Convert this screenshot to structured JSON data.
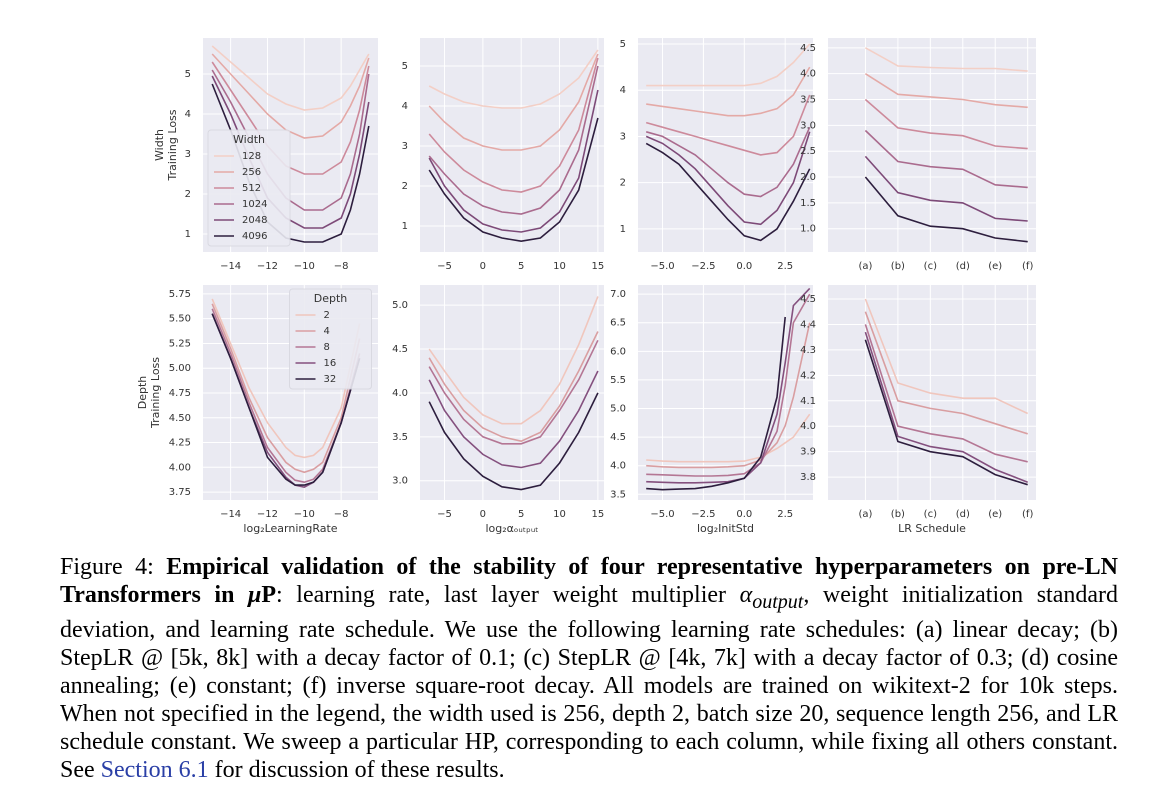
{
  "chart_data": [
    {
      "type": "line",
      "ylabel": [
        "Width",
        "Training Loss"
      ],
      "legend": "lower left",
      "legend_title": "Width",
      "x": [
        -15,
        -14,
        -13,
        -12,
        -11,
        -10,
        -9,
        -8,
        -7.5,
        -7,
        -6.5
      ],
      "xlim": [
        -15.5,
        -6
      ],
      "xticks": [
        {
          "value": -14,
          "label": "−14"
        },
        {
          "value": -12,
          "label": "−12"
        },
        {
          "value": -10,
          "label": "−10"
        },
        {
          "value": -8,
          "label": "−8"
        }
      ],
      "ylim": [
        0.55,
        5.9
      ],
      "yticks": [
        1,
        2,
        3,
        4,
        5
      ],
      "grid": true,
      "series": [
        {
          "name": "128",
          "color": "#f3cfc6",
          "values": [
            5.7,
            5.3,
            4.9,
            4.5,
            4.25,
            4.1,
            4.15,
            4.4,
            4.7,
            5.1,
            5.5
          ]
        },
        {
          "name": "256",
          "color": "#e4a9a6",
          "values": [
            5.5,
            5.0,
            4.5,
            4.0,
            3.6,
            3.4,
            3.45,
            3.8,
            4.2,
            4.7,
            5.4
          ]
        },
        {
          "name": "512",
          "color": "#cd8a9b",
          "values": [
            5.3,
            4.6,
            3.9,
            3.2,
            2.7,
            2.5,
            2.5,
            2.8,
            3.3,
            4.1,
            5.2
          ]
        },
        {
          "name": "1024",
          "color": "#aa6b8e",
          "values": [
            5.1,
            4.3,
            3.4,
            2.5,
            1.9,
            1.6,
            1.6,
            1.9,
            2.5,
            3.5,
            5.0
          ]
        },
        {
          "name": "2048",
          "color": "#7d4a78",
          "values": [
            4.95,
            4.0,
            2.9,
            1.9,
            1.4,
            1.15,
            1.15,
            1.4,
            2.0,
            3.0,
            4.3
          ]
        },
        {
          "name": "4096",
          "color": "#2d1e3e",
          "values": [
            4.75,
            3.6,
            2.3,
            1.3,
            0.9,
            0.8,
            0.8,
            1.0,
            1.6,
            2.5,
            3.7
          ]
        }
      ]
    },
    {
      "type": "line",
      "x": [
        -7,
        -5,
        -2.5,
        0,
        2.5,
        5,
        7.5,
        10,
        12.5,
        15
      ],
      "xlim": [
        -8.2,
        15.8
      ],
      "xticks": [
        {
          "value": -5,
          "label": "−5"
        },
        0,
        5,
        10,
        15
      ],
      "ylim": [
        0.35,
        5.7
      ],
      "yticks": [
        1,
        2,
        3,
        4,
        5
      ],
      "grid": true,
      "series": [
        {
          "name": "128",
          "color": "#f3cfc6",
          "values": [
            4.5,
            4.3,
            4.1,
            4.0,
            3.95,
            3.95,
            4.05,
            4.3,
            4.7,
            5.4
          ]
        },
        {
          "name": "256",
          "color": "#e4a9a6",
          "values": [
            4.0,
            3.6,
            3.2,
            3.0,
            2.9,
            2.9,
            3.0,
            3.4,
            4.1,
            5.3
          ]
        },
        {
          "name": "512",
          "color": "#cd8a9b",
          "values": [
            3.3,
            2.85,
            2.4,
            2.1,
            1.9,
            1.85,
            2.0,
            2.5,
            3.4,
            5.2
          ]
        },
        {
          "name": "1024",
          "color": "#aa6b8e",
          "values": [
            2.75,
            2.3,
            1.8,
            1.5,
            1.35,
            1.3,
            1.45,
            1.9,
            2.9,
            5.0
          ]
        },
        {
          "name": "2048",
          "color": "#7d4a78",
          "values": [
            2.7,
            2.0,
            1.4,
            1.05,
            0.9,
            0.85,
            0.95,
            1.35,
            2.2,
            4.4
          ]
        },
        {
          "name": "4096",
          "color": "#2d1e3e",
          "values": [
            2.4,
            1.8,
            1.2,
            0.85,
            0.7,
            0.62,
            0.7,
            1.1,
            1.9,
            3.7
          ]
        }
      ]
    },
    {
      "type": "line",
      "x": [
        -6,
        -5,
        -4,
        -3,
        -2,
        -1,
        0,
        1,
        2,
        3,
        4
      ],
      "xlim": [
        -6.5,
        4.2
      ],
      "xticks": [
        {
          "value": -5,
          "label": "−5.0"
        },
        {
          "value": -2.5,
          "label": "−2.5"
        },
        {
          "value": 0,
          "label": "0.0"
        },
        2.5
      ],
      "ylim": [
        0.5,
        5.13
      ],
      "yticks": [
        1,
        2,
        3,
        4,
        5
      ],
      "grid": true,
      "series": [
        {
          "name": "128",
          "color": "#f3cfc6",
          "values": [
            4.1,
            4.1,
            4.1,
            4.1,
            4.1,
            4.1,
            4.1,
            4.15,
            4.3,
            4.6,
            5.0
          ]
        },
        {
          "name": "256",
          "color": "#e4a9a6",
          "values": [
            3.7,
            3.65,
            3.6,
            3.55,
            3.5,
            3.45,
            3.45,
            3.5,
            3.6,
            3.9,
            4.5
          ]
        },
        {
          "name": "512",
          "color": "#cd8a9b",
          "values": [
            3.3,
            3.2,
            3.1,
            3.0,
            2.9,
            2.8,
            2.7,
            2.6,
            2.65,
            3.0,
            3.9
          ]
        },
        {
          "name": "1024",
          "color": "#aa6b8e",
          "values": [
            3.1,
            3.0,
            2.8,
            2.6,
            2.3,
            2.0,
            1.75,
            1.7,
            1.9,
            2.4,
            3.2
          ]
        },
        {
          "name": "2048",
          "color": "#7d4a78",
          "values": [
            3.0,
            2.85,
            2.6,
            2.3,
            1.9,
            1.5,
            1.15,
            1.1,
            1.4,
            2.0,
            3.1
          ]
        },
        {
          "name": "4096",
          "color": "#2d1e3e",
          "values": [
            2.85,
            2.65,
            2.4,
            2.0,
            1.6,
            1.2,
            0.85,
            0.75,
            1.0,
            1.6,
            2.3
          ]
        }
      ]
    },
    {
      "type": "line",
      "categories": [
        "(a)",
        "(b)",
        "(c)",
        "(d)",
        "(e)",
        "(f)"
      ],
      "ylim": [
        0.55,
        4.69
      ],
      "yticks": [
        4.5,
        {
          "value": 4,
          "label": "4.0"
        },
        3.5,
        {
          "value": 3,
          "label": "3.0"
        },
        2.5,
        {
          "value": 2,
          "label": "2.0"
        },
        1.5,
        {
          "value": 1,
          "label": "1.0"
        }
      ],
      "grid": true,
      "series": [
        {
          "name": "128",
          "color": "#f3cfc6",
          "values": [
            4.5,
            4.15,
            4.12,
            4.1,
            4.1,
            4.05
          ]
        },
        {
          "name": "256",
          "color": "#e4a9a6",
          "values": [
            4.0,
            3.6,
            3.55,
            3.5,
            3.4,
            3.35
          ]
        },
        {
          "name": "512",
          "color": "#cd8a9b",
          "values": [
            3.5,
            2.95,
            2.85,
            2.8,
            2.6,
            2.55
          ]
        },
        {
          "name": "1024",
          "color": "#aa6b8e",
          "values": [
            2.9,
            2.3,
            2.2,
            2.15,
            1.85,
            1.8
          ]
        },
        {
          "name": "2048",
          "color": "#7d4a78",
          "values": [
            2.4,
            1.7,
            1.55,
            1.5,
            1.2,
            1.15
          ]
        },
        {
          "name": "4096",
          "color": "#2d1e3e",
          "values": [
            2.0,
            1.25,
            1.05,
            1.0,
            0.82,
            0.75
          ]
        }
      ]
    },
    {
      "type": "line",
      "ylabel": [
        "Depth",
        "Training Loss"
      ],
      "xlabel": "log₂LearningRate",
      "legend": "upper center",
      "legend_title": "Depth",
      "x": [
        -15,
        -14,
        -13,
        -12,
        -11,
        -10.5,
        -10,
        -9.5,
        -9,
        -8,
        -7
      ],
      "xlim": [
        -15.5,
        -6
      ],
      "xticks": [
        {
          "value": -14,
          "label": "−14"
        },
        {
          "value": -12,
          "label": "−12"
        },
        {
          "value": -10,
          "label": "−10"
        },
        {
          "value": -8,
          "label": "−8"
        }
      ],
      "ylim": [
        3.67,
        5.84
      ],
      "yticks": [
        5.75,
        {
          "value": 5.5,
          "label": "5.50"
        },
        5.25,
        {
          "value": 5,
          "label": "5.00"
        },
        4.75,
        {
          "value": 4.5,
          "label": "4.50"
        },
        4.25,
        {
          "value": 4,
          "label": "4.00"
        },
        3.75
      ],
      "grid": true,
      "series": [
        {
          "name": "2",
          "color": "#f0c6bd",
          "values": [
            5.7,
            5.25,
            4.8,
            4.45,
            4.2,
            4.12,
            4.1,
            4.12,
            4.2,
            4.6,
            5.45
          ]
        },
        {
          "name": "4",
          "color": "#d99ea1",
          "values": [
            5.65,
            5.2,
            4.7,
            4.3,
            4.05,
            3.98,
            3.95,
            3.98,
            4.05,
            4.5,
            5.3
          ]
        },
        {
          "name": "8",
          "color": "#b47694",
          "values": [
            5.6,
            5.15,
            4.65,
            4.2,
            3.95,
            3.87,
            3.85,
            3.88,
            3.98,
            4.45,
            5.15
          ]
        },
        {
          "name": "16",
          "color": "#84507e",
          "values": [
            5.55,
            5.1,
            4.6,
            4.15,
            3.9,
            3.82,
            3.8,
            3.85,
            3.95,
            4.45,
            5.1
          ]
        },
        {
          "name": "32",
          "color": "#2d1e3e",
          "values": [
            5.55,
            5.1,
            4.6,
            4.1,
            3.88,
            3.82,
            3.82,
            3.85,
            3.95,
            4.45,
            5.1
          ]
        }
      ]
    },
    {
      "type": "line",
      "xlabel": "log₂αₒᵤₜₚᵤₜ",
      "x": [
        -7,
        -5,
        -2.5,
        0,
        2.5,
        5,
        7.5,
        10,
        12.5,
        15
      ],
      "xlim": [
        -8.2,
        15.8
      ],
      "xticks": [
        {
          "value": -5,
          "label": "−5"
        },
        0,
        5,
        10,
        15
      ],
      "ylim": [
        2.78,
        5.23
      ],
      "yticks": [
        {
          "value": 5,
          "label": "5.0"
        },
        4.5,
        {
          "value": 4,
          "label": "4.0"
        },
        3.5,
        {
          "value": 3,
          "label": "3.0"
        }
      ],
      "grid": true,
      "series": [
        {
          "name": "2",
          "color": "#f0c6bd",
          "values": [
            4.5,
            4.25,
            3.95,
            3.75,
            3.65,
            3.65,
            3.8,
            4.1,
            4.55,
            5.1
          ]
        },
        {
          "name": "4",
          "color": "#d99ea1",
          "values": [
            4.4,
            4.1,
            3.8,
            3.6,
            3.5,
            3.45,
            3.55,
            3.85,
            4.25,
            4.7
          ]
        },
        {
          "name": "8",
          "color": "#b47694",
          "values": [
            4.3,
            4.0,
            3.7,
            3.5,
            3.42,
            3.42,
            3.5,
            3.8,
            4.15,
            4.6
          ]
        },
        {
          "name": "16",
          "color": "#84507e",
          "values": [
            4.15,
            3.8,
            3.5,
            3.3,
            3.18,
            3.15,
            3.2,
            3.45,
            3.8,
            4.25
          ]
        },
        {
          "name": "32",
          "color": "#2d1e3e",
          "values": [
            3.9,
            3.55,
            3.25,
            3.05,
            2.93,
            2.9,
            2.95,
            3.2,
            3.55,
            4.0
          ]
        }
      ]
    },
    {
      "type": "line",
      "xlabel": "log₂InitStd",
      "x": [
        -6,
        -5,
        -4,
        -3,
        -2,
        -1,
        0,
        1,
        2,
        2.5,
        3,
        4
      ],
      "xlim": [
        -6.5,
        4.2
      ],
      "xticks": [
        {
          "value": -5,
          "label": "−5.0"
        },
        {
          "value": -2.5,
          "label": "−2.5"
        },
        {
          "value": 0,
          "label": "0.0"
        },
        2.5
      ],
      "ylim": [
        3.4,
        7.16
      ],
      "yticks": [
        {
          "value": 7,
          "label": "7.0"
        },
        6.5,
        {
          "value": 6,
          "label": "6.0"
        },
        5.5,
        {
          "value": 5,
          "label": "5.0"
        },
        4.5,
        {
          "value": 4,
          "label": "4.0"
        },
        3.5
      ],
      "grid": true,
      "series": [
        {
          "name": "2",
          "color": "#f0c6bd",
          "values": [
            4.1,
            4.08,
            4.07,
            4.07,
            4.07,
            4.07,
            4.08,
            4.15,
            4.3,
            4.4,
            4.5,
            4.9
          ]
        },
        {
          "name": "4",
          "color": "#d99ea1",
          "values": [
            4.0,
            3.98,
            3.97,
            3.97,
            3.97,
            3.98,
            4.0,
            4.1,
            4.4,
            4.7,
            5.2,
            6.5
          ]
        },
        {
          "name": "8",
          "color": "#b47694",
          "values": [
            3.85,
            3.84,
            3.83,
            3.82,
            3.82,
            3.83,
            3.86,
            4.05,
            4.6,
            5.4,
            6.5,
            7.0
          ]
        },
        {
          "name": "16",
          "color": "#84507e",
          "values": [
            3.72,
            3.71,
            3.7,
            3.7,
            3.71,
            3.72,
            3.78,
            4.05,
            4.9,
            5.8,
            6.8,
            7.1
          ]
        },
        {
          "name": "32",
          "color": "#2d1e3e",
          "values": [
            3.6,
            3.58,
            3.59,
            3.6,
            3.64,
            3.7,
            3.78,
            4.15,
            5.2,
            6.6,
            null,
            null
          ]
        }
      ]
    },
    {
      "type": "line",
      "xlabel": "LR Schedule",
      "categories": [
        "(a)",
        "(b)",
        "(c)",
        "(d)",
        "(e)",
        "(f)"
      ],
      "ylim": [
        3.71,
        4.555
      ],
      "yticks": [
        4.5,
        4.4,
        4.3,
        4.2,
        4.1,
        {
          "value": 4,
          "label": "4.0"
        },
        3.9,
        3.8
      ],
      "grid": true,
      "series": [
        {
          "name": "2",
          "color": "#f0c6bd",
          "values": [
            4.5,
            4.17,
            4.13,
            4.11,
            4.11,
            4.05
          ]
        },
        {
          "name": "4",
          "color": "#d99ea1",
          "values": [
            4.45,
            4.1,
            4.07,
            4.05,
            4.01,
            3.97
          ]
        },
        {
          "name": "8",
          "color": "#b47694",
          "values": [
            4.4,
            4.0,
            3.97,
            3.95,
            3.89,
            3.86
          ]
        },
        {
          "name": "16",
          "color": "#84507e",
          "values": [
            4.37,
            3.96,
            3.92,
            3.9,
            3.83,
            3.78
          ]
        },
        {
          "name": "32",
          "color": "#2d1e3e",
          "values": [
            4.34,
            3.94,
            3.9,
            3.88,
            3.81,
            3.77
          ]
        }
      ]
    }
  ],
  "caption": {
    "label": "Figure 4: ",
    "title": "Empirical validation of the stability of four representative hyperparameters on pre-LN Transformers in ",
    "title_math": "μ",
    "title_end": "P",
    "body_start": ": learning rate, last layer weight multiplier ",
    "math": "α",
    "math_sub": "output",
    "body": ", weight initialization standard deviation, and learning rate schedule. We use the following learning rate schedules: (a) linear decay; (b) StepLR @ [5k, 8k] with a decay factor of 0.1; (c) StepLR @ [4k, 7k] with a decay factor of 0.3; (d) cosine annealing; (e) constant; (f) inverse square-root decay. All models are trained on wikitext-2 for 10k steps. When not specified in the legend, the width used is 256, depth 2, batch size 20, sequence length 256, and LR schedule constant. We sweep a particular HP, corresponding to each column, while fixing all others constant. See ",
    "link": "Section 6.1",
    "end": " for discussion of these results."
  }
}
